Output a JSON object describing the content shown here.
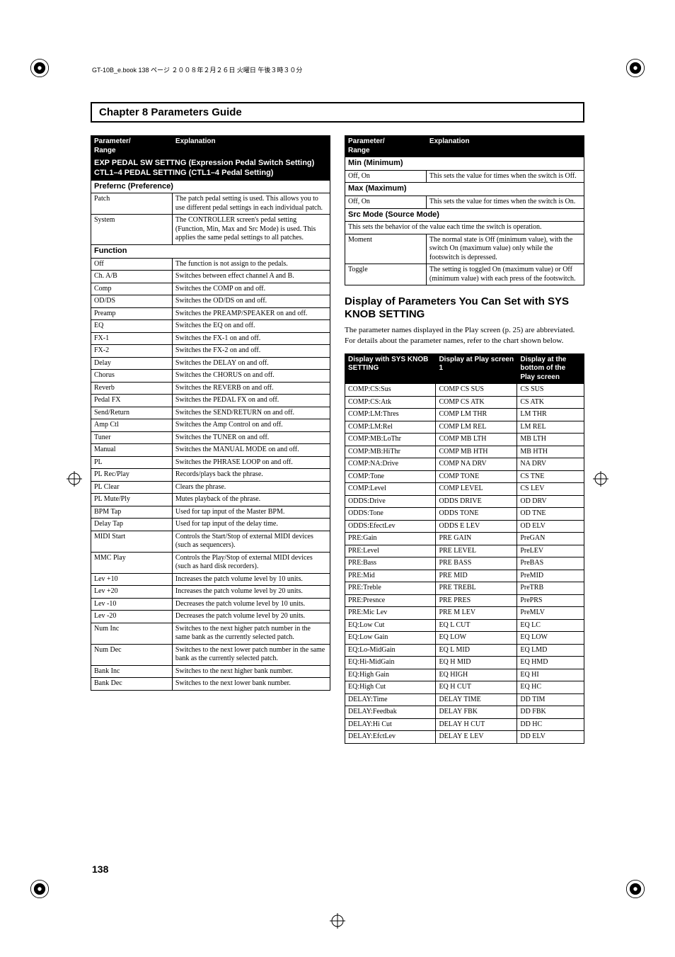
{
  "header_note": "GT-10B_e.book 138 ページ ２００８年２月２６日 火曜日 午後３時３０分",
  "chapter_title": "Chapter 8 Parameters Guide",
  "page_number": "138",
  "left": {
    "headers": [
      "Parameter/\nRange",
      "Explanation"
    ],
    "section1": "EXP PEDAL SW SETTNG (Expression Pedal Switch Setting)\nCTL1–4 PEDAL SETTING (CTL1–4 Pedal Setting)",
    "sub_prefernc": "Prefernc (Preference)",
    "prefernc_rows": [
      [
        "Patch",
        "The patch pedal setting is used. This allows you to use different pedal settings in each individual patch."
      ],
      [
        "System",
        "The CONTROLLER screen's pedal setting (Function, Min, Max and Src Mode) is used. This applies the same pedal settings to all patches."
      ]
    ],
    "sub_function": "Function",
    "function_rows": [
      [
        "Off",
        "The function is not assign to the pedals."
      ],
      [
        "Ch. A/B",
        "Switches between effect channel A and B."
      ],
      [
        "Comp",
        "Switches the COMP on and off."
      ],
      [
        "OD/DS",
        "Switches the OD/DS on and off."
      ],
      [
        "Preamp",
        "Switches the PREAMP/SPEAKER on and off."
      ],
      [
        "EQ",
        "Switches the EQ on and off."
      ],
      [
        "FX-1",
        "Switches the FX-1 on and off."
      ],
      [
        "FX-2",
        "Switches the FX-2 on and off."
      ],
      [
        "Delay",
        "Switches the DELAY on and off."
      ],
      [
        "Chorus",
        "Switches the CHORUS on and off."
      ],
      [
        "Reverb",
        "Switches the REVERB on and off."
      ],
      [
        "Pedal FX",
        "Switches the PEDAL FX on and off."
      ],
      [
        "Send/Return",
        "Switches the SEND/RETURN on and off."
      ],
      [
        "Amp Ctl",
        "Switches the Amp Control on and off."
      ],
      [
        "Tuner",
        "Switches the TUNER on and off."
      ],
      [
        "Manual",
        "Switches the MANUAL MODE on and off."
      ],
      [
        "PL",
        "Switches the PHRASE LOOP on and off."
      ],
      [
        "PL Rec/Play",
        "Records/plays back the phrase."
      ],
      [
        "PL Clear",
        "Clears the phrase."
      ],
      [
        "PL Mute/Ply",
        "Mutes playback of the phrase."
      ],
      [
        "BPM Tap",
        "Used for tap input of the Master BPM."
      ],
      [
        "Delay Tap",
        "Used for tap input of the delay time."
      ],
      [
        "MIDI Start",
        "Controls the Start/Stop of external MIDI devices (such as sequencers)."
      ],
      [
        "MMC Play",
        "Controls the Play/Stop of external MIDI devices (such as hard disk recorders)."
      ],
      [
        "Lev +10",
        "Increases the patch volume level by 10 units."
      ],
      [
        "Lev +20",
        "Increases the patch volume level by 20 units."
      ],
      [
        "Lev -10",
        "Decreases the patch volume level by 10 units."
      ],
      [
        "Lev -20",
        "Decreases the patch volume level by 20 units."
      ],
      [
        "Num Inc",
        "Switches to the next higher patch number in the same bank as the currently selected patch."
      ],
      [
        "Num Dec",
        "Switches to the next lower patch number in the same bank as the currently selected patch."
      ],
      [
        "Bank Inc",
        "Switches to the next higher bank number."
      ],
      [
        "Bank Dec",
        "Switches to the next lower bank number."
      ]
    ]
  },
  "right_top": {
    "headers": [
      "Parameter/\nRange",
      "Explanation"
    ],
    "sub_min": "Min (Minimum)",
    "min_rows": [
      [
        "Off, On",
        "This sets the value for times when the switch is Off."
      ]
    ],
    "sub_max": "Max (Maximum)",
    "max_rows": [
      [
        "Off, On",
        "This sets the value for times when the switch is On."
      ]
    ],
    "sub_src": "Src Mode (Source Mode)",
    "src_note": "This sets the behavior of the value each time the switch is operation.",
    "src_rows": [
      [
        "Moment",
        "The normal state is Off (minimum value), with the switch On (maximum value) only while the footswitch is depressed."
      ],
      [
        "Toggle",
        "The setting is toggled On (maximum value) or Off (minimum value) with each press of the footswitch."
      ]
    ]
  },
  "right_mid": {
    "heading": "Display of Parameters You Can Set with SYS KNOB SETTING",
    "body": "The parameter names displayed in the Play screen (p. 25) are abbreviated. For details about the parameter names, refer to the chart shown below."
  },
  "right_bottom": {
    "headers": [
      "Display with SYS KNOB SETTING",
      "Display at Play screen 1",
      "Display at the bottom of the Play screen"
    ],
    "rows": [
      [
        "COMP:CS:Sus",
        "COMP CS SUS",
        "CS SUS"
      ],
      [
        "COMP:CS:Atk",
        "COMP CS ATK",
        "CS ATK"
      ],
      [
        "COMP:LM:Thres",
        "COMP LM THR",
        "LM THR"
      ],
      [
        "COMP:LM:Rel",
        "COMP LM REL",
        "LM REL"
      ],
      [
        "COMP:MB:LoThr",
        "COMP MB LTH",
        "MB LTH"
      ],
      [
        "COMP:MB:HiThr",
        "COMP MB HTH",
        "MB HTH"
      ],
      [
        "COMP:NA:Drive",
        "COMP NA DRV",
        "NA DRV"
      ],
      [
        "COMP:Tone",
        "COMP TONE",
        "CS TNE"
      ],
      [
        "COMP:Level",
        "COMP LEVEL",
        "CS LEV"
      ],
      [
        "ODDS:Drive",
        "ODDS DRIVE",
        "OD DRV"
      ],
      [
        "ODDS:Tone",
        "ODDS TONE",
        "OD TNE"
      ],
      [
        "ODDS:EfectLev",
        "ODDS E LEV",
        "OD ELV"
      ],
      [
        "PRE:Gain",
        "PRE GAIN",
        "PreGAN"
      ],
      [
        "PRE:Level",
        "PRE LEVEL",
        "PreLEV"
      ],
      [
        "PRE:Bass",
        "PRE BASS",
        "PreBAS"
      ],
      [
        "PRE:Mid",
        "PRE MID",
        "PreMID"
      ],
      [
        "PRE:Treble",
        "PRE TREBL",
        "PreTRB"
      ],
      [
        "PRE:Presnce",
        "PRE PRES",
        "PrePRS"
      ],
      [
        "PRE:Mic Lev",
        "PRE M LEV",
        "PreMLV"
      ],
      [
        "EQ:Low Cut",
        "EQ L CUT",
        "EQ LC"
      ],
      [
        "EQ:Low Gain",
        "EQ LOW",
        "EQ LOW"
      ],
      [
        "EQ:Lo-MidGain",
        "EQ L MID",
        "EQ LMD"
      ],
      [
        "EQ:Hi-MidGain",
        "EQ H MID",
        "EQ HMD"
      ],
      [
        "EQ:High Gain",
        "EQ HIGH",
        "EQ HI"
      ],
      [
        "EQ:High Cut",
        "EQ H CUT",
        "EQ HC"
      ],
      [
        "DELAY:Time",
        "DELAY TIME",
        "DD TIM"
      ],
      [
        "DELAY:Feedbak",
        "DELAY FBK",
        "DD FBK"
      ],
      [
        "DELAY:Hi Cut",
        "DELAY H CUT",
        "DD HC"
      ],
      [
        "DELAY:EfctLev",
        "DELAY E LEV",
        "DD ELV"
      ]
    ]
  }
}
